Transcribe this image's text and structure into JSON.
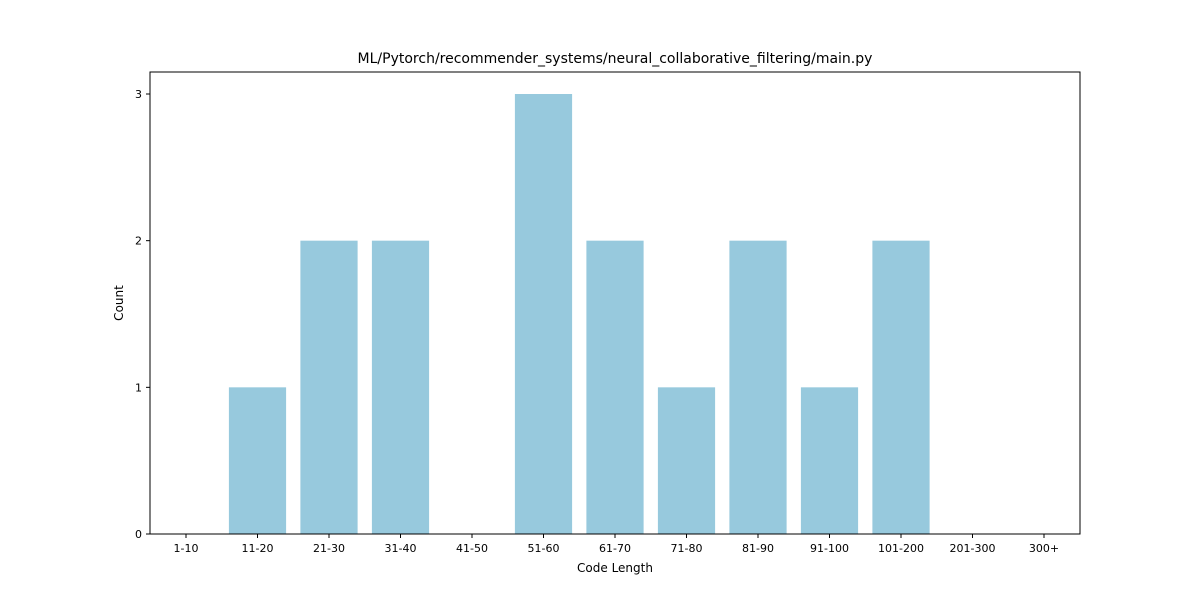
{
  "chart_data": {
    "type": "bar",
    "title": "ML/Pytorch/recommender_systems/neural_collaborative_filtering/main.py",
    "xlabel": "Code Length",
    "ylabel": "Count",
    "categories": [
      "1-10",
      "11-20",
      "21-30",
      "31-40",
      "41-50",
      "51-60",
      "61-70",
      "71-80",
      "81-90",
      "91-100",
      "101-200",
      "201-300",
      "300+"
    ],
    "values": [
      0,
      1,
      2,
      2,
      0,
      3,
      2,
      1,
      2,
      1,
      2,
      0,
      0
    ],
    "yticks": [
      0,
      1,
      2,
      3
    ],
    "ylim": [
      0,
      3.15
    ],
    "bar_color": "#97c9dd",
    "grid": false,
    "legend": "none"
  }
}
